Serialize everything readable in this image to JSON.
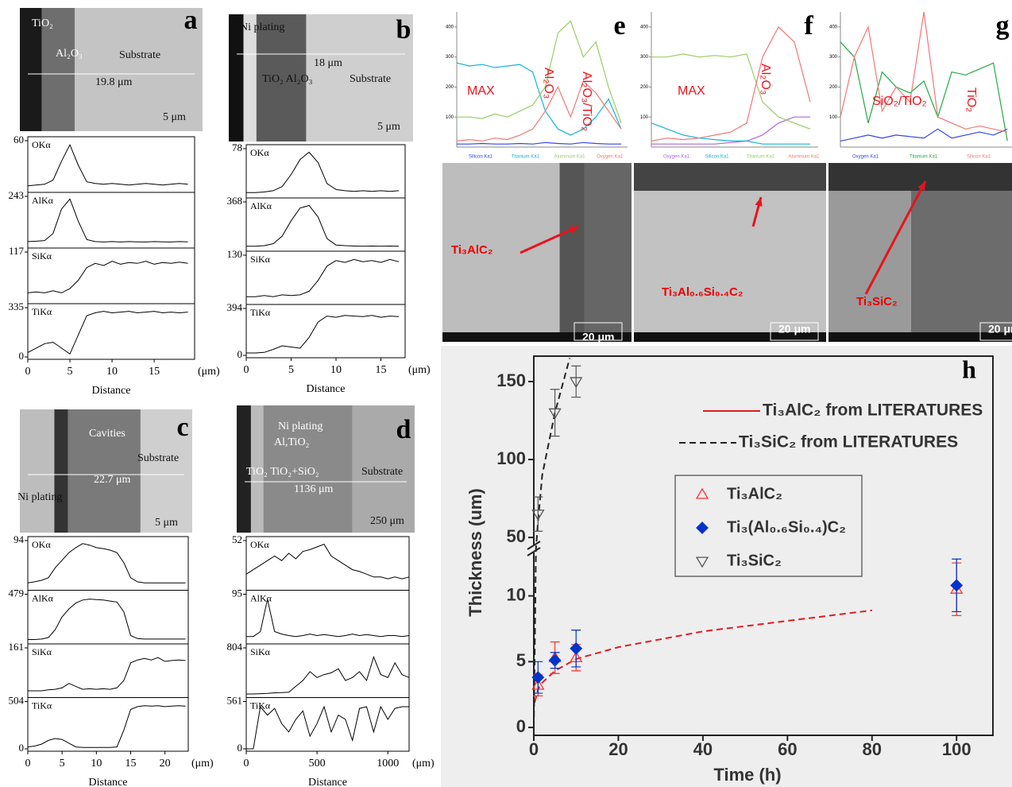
{
  "chart_data": [
    {
      "type": "profile",
      "panel": "a",
      "image_labels": [
        "TiO₂",
        "Al₂O₃",
        "Substrate",
        "19.8 μm",
        "5 μm"
      ],
      "x": [
        0,
        1,
        2,
        3,
        4,
        5,
        6,
        7,
        8,
        9,
        10,
        11,
        12,
        13,
        14,
        15,
        16,
        17,
        18,
        19
      ],
      "xlim": [
        0,
        19.8
      ],
      "xticks": [
        0,
        5,
        10,
        15
      ],
      "x_unit": "(μm)",
      "xlabel": "Distance",
      "series": [
        {
          "name": "OKα",
          "ylim": [
            0,
            60
          ],
          "yticks": [
            60
          ],
          "values": [
            5,
            6,
            7,
            12,
            35,
            55,
            30,
            10,
            8,
            7,
            8,
            7,
            6,
            7,
            8,
            7,
            6,
            7,
            8,
            7
          ]
        },
        {
          "name": "AlKα",
          "ylim": [
            0,
            243
          ],
          "yticks": [
            243
          ],
          "values": [
            20,
            22,
            25,
            60,
            180,
            230,
            120,
            30,
            20,
            18,
            20,
            18,
            20,
            19,
            18,
            20,
            19,
            18,
            20,
            19
          ]
        },
        {
          "name": "SiKα",
          "ylim": [
            0,
            117
          ],
          "yticks": [
            117
          ],
          "values": [
            20,
            22,
            20,
            25,
            20,
            30,
            50,
            80,
            90,
            85,
            95,
            88,
            92,
            90,
            95,
            88,
            92,
            90,
            93,
            90
          ]
        },
        {
          "name": "TiKα",
          "ylim": [
            0,
            335
          ],
          "yticks": [
            0,
            335
          ],
          "values": [
            30,
            60,
            90,
            100,
            60,
            20,
            150,
            280,
            300,
            310,
            300,
            305,
            310,
            300,
            305,
            310,
            300,
            305,
            300,
            305
          ]
        }
      ]
    },
    {
      "type": "profile",
      "panel": "b",
      "image_labels": [
        "Ni plating",
        "18 μm",
        "TiO₂ Al₂O₃",
        "Substrate",
        "5 μm"
      ],
      "x": [
        0,
        1,
        2,
        3,
        4,
        5,
        6,
        7,
        8,
        9,
        10,
        11,
        12,
        13,
        14,
        15,
        16,
        17
      ],
      "xlim": [
        0,
        17.7
      ],
      "xticks": [
        0,
        5,
        10,
        15
      ],
      "x_unit": "(μm)",
      "xlabel": "Distance",
      "series": [
        {
          "name": "OKα",
          "ylim": [
            0,
            78
          ],
          "yticks": [
            78
          ],
          "values": [
            5,
            5,
            6,
            8,
            15,
            35,
            60,
            72,
            55,
            20,
            10,
            8,
            7,
            8,
            7,
            8,
            7,
            8
          ]
        },
        {
          "name": "AlKα",
          "ylim": [
            0,
            368
          ],
          "yticks": [
            368
          ],
          "values": [
            20,
            20,
            25,
            40,
            100,
            220,
            320,
            340,
            250,
            80,
            30,
            25,
            22,
            20,
            22,
            20,
            22,
            20
          ]
        },
        {
          "name": "SiKα",
          "ylim": [
            0,
            130
          ],
          "yticks": [
            130
          ],
          "values": [
            15,
            15,
            18,
            15,
            20,
            18,
            20,
            30,
            60,
            100,
            115,
            110,
            118,
            112,
            115,
            110,
            118,
            112
          ]
        },
        {
          "name": "TiKα",
          "ylim": [
            0,
            394
          ],
          "yticks": [
            0,
            394
          ],
          "values": [
            20,
            20,
            25,
            50,
            80,
            70,
            60,
            150,
            280,
            330,
            320,
            335,
            330,
            325,
            335,
            320,
            330,
            325
          ]
        }
      ]
    },
    {
      "type": "profile",
      "panel": "c",
      "image_labels": [
        "Cavities",
        "Substrate",
        "22.7 μm",
        "Ni plating",
        "5 μm"
      ],
      "x": [
        0,
        1,
        2,
        3,
        4,
        5,
        6,
        7,
        8,
        9,
        10,
        11,
        12,
        13,
        14,
        15,
        16,
        17,
        18,
        19,
        20,
        21,
        22,
        23
      ],
      "xlim": [
        0,
        23.4
      ],
      "xticks": [
        0,
        5,
        10,
        15,
        20
      ],
      "x_unit": "(μm)",
      "xlabel": "Distance",
      "series": [
        {
          "name": "OKα",
          "ylim": [
            0,
            94
          ],
          "yticks": [
            94
          ],
          "values": [
            10,
            12,
            15,
            20,
            40,
            55,
            70,
            80,
            88,
            85,
            80,
            78,
            75,
            70,
            50,
            20,
            12,
            10,
            10,
            10,
            10,
            10,
            10,
            10
          ]
        },
        {
          "name": "AlKα",
          "ylim": [
            0,
            479
          ],
          "yticks": [
            479
          ],
          "values": [
            20,
            20,
            25,
            40,
            120,
            250,
            330,
            390,
            420,
            430,
            425,
            420,
            410,
            400,
            300,
            60,
            30,
            25,
            25,
            25,
            25,
            25,
            25,
            25
          ]
        },
        {
          "name": "SiKα",
          "ylim": [
            0,
            161
          ],
          "yticks": [
            161
          ],
          "values": [
            15,
            15,
            15,
            18,
            20,
            25,
            40,
            30,
            20,
            22,
            20,
            22,
            20,
            25,
            50,
            110,
            120,
            125,
            120,
            128,
            115,
            118,
            120,
            118
          ]
        },
        {
          "name": "TiKα",
          "ylim": [
            0,
            504
          ],
          "yticks": [
            0,
            504
          ],
          "values": [
            20,
            30,
            50,
            90,
            110,
            100,
            60,
            20,
            15,
            15,
            15,
            15,
            15,
            20,
            200,
            420,
            450,
            460,
            455,
            460,
            450,
            455,
            460,
            455
          ]
        }
      ]
    },
    {
      "type": "profile",
      "panel": "d",
      "image_labels": [
        "Ni plating",
        "Al,TiO₂",
        "TiO₂ TiO₂+SiO₂",
        "Substrate",
        "1136 μm",
        "250 μm"
      ],
      "x": [
        0,
        50,
        100,
        150,
        200,
        250,
        300,
        350,
        400,
        450,
        500,
        550,
        600,
        650,
        700,
        750,
        800,
        850,
        900,
        950,
        1000,
        1050,
        1100,
        1150
      ],
      "xlim": [
        0,
        1150
      ],
      "xticks": [
        0,
        500,
        1000
      ],
      "x_unit": "(μm)",
      "xlabel": "Distance",
      "series": [
        {
          "name": "OKα",
          "ylim": [
            0,
            52
          ],
          "yticks": [
            52
          ],
          "values": [
            15,
            20,
            25,
            30,
            35,
            30,
            38,
            32,
            40,
            42,
            45,
            48,
            35,
            30,
            25,
            20,
            18,
            15,
            12,
            12,
            10,
            12,
            10,
            12
          ]
        },
        {
          "name": "AlKα",
          "ylim": [
            0,
            95
          ],
          "yticks": [
            95
          ],
          "values": [
            10,
            10,
            20,
            85,
            20,
            15,
            12,
            10,
            12,
            15,
            12,
            14,
            12,
            10,
            12,
            15,
            12,
            14,
            12,
            10,
            12,
            12,
            10,
            12
          ]
        },
        {
          "name": "SiKα",
          "ylim": [
            0,
            804
          ],
          "yticks": [
            804
          ],
          "values": [
            20,
            20,
            25,
            30,
            40,
            45,
            50,
            150,
            250,
            400,
            300,
            350,
            380,
            450,
            250,
            300,
            400,
            250,
            650,
            350,
            300,
            550,
            350,
            300
          ]
        },
        {
          "name": "TiKα",
          "ylim": [
            0,
            561
          ],
          "yticks": [
            0,
            561
          ],
          "values": [
            0,
            0,
            500,
            400,
            480,
            300,
            200,
            350,
            450,
            150,
            300,
            500,
            200,
            400,
            350,
            100,
            480,
            500,
            200,
            500,
            350,
            480,
            500,
            500
          ]
        }
      ]
    },
    {
      "type": "line",
      "panel": "e",
      "annotations": [
        "MAX",
        "Al₂O₃",
        "Al₂O₃/TiO₂"
      ],
      "image_labels": [
        "Ti₃AlC₂",
        "20 μm"
      ],
      "x": [
        0,
        2,
        4,
        6,
        8,
        10,
        12,
        14,
        16,
        18,
        20,
        22,
        24,
        26
      ],
      "xlim": [
        0,
        27
      ],
      "ylim": [
        0,
        450
      ],
      "yticks": [
        100,
        200,
        300,
        400
      ],
      "series": [
        {
          "name": "Silicon Ka1",
          "color": "#3344ee",
          "values": [
            10,
            10,
            12,
            10,
            10,
            12,
            10,
            15,
            12,
            10,
            15,
            12,
            10,
            10
          ]
        },
        {
          "name": "Titanium Ka1",
          "color": "#11b5d5",
          "values": [
            280,
            270,
            275,
            265,
            270,
            275,
            250,
            120,
            60,
            40,
            60,
            100,
            160,
            60
          ]
        },
        {
          "name": "Aluminum Ka1",
          "color": "#9ccc66",
          "values": [
            100,
            100,
            95,
            110,
            100,
            120,
            140,
            200,
            380,
            420,
            300,
            350,
            200,
            80
          ]
        },
        {
          "name": "Oxygen Ka1",
          "color": "#f27777",
          "values": [
            20,
            25,
            20,
            30,
            25,
            40,
            60,
            120,
            200,
            100,
            220,
            180,
            120,
            60
          ]
        }
      ]
    },
    {
      "type": "line",
      "panel": "f",
      "annotations": [
        "MAX",
        "Al₂O₃"
      ],
      "image_labels": [
        "Ti₃Al₀.₆Si₀.₄C₂",
        "20 μm"
      ],
      "x": [
        0,
        2,
        4,
        6,
        8,
        10,
        12,
        14,
        16,
        18,
        20
      ],
      "xlim": [
        0,
        21
      ],
      "ylim": [
        0,
        450
      ],
      "yticks": [
        100,
        200,
        300,
        400
      ],
      "series": [
        {
          "name": "Oxygen Ka1",
          "color": "#aa66dd",
          "values": [
            10,
            10,
            10,
            10,
            10,
            15,
            20,
            40,
            80,
            100,
            100
          ]
        },
        {
          "name": "Silicon Ka1",
          "color": "#11b5d5",
          "values": [
            80,
            60,
            40,
            30,
            25,
            20,
            20,
            10,
            10,
            10,
            10
          ]
        },
        {
          "name": "Titanium Ka1",
          "color": "#9ccc66",
          "values": [
            300,
            300,
            310,
            300,
            305,
            300,
            310,
            150,
            100,
            80,
            60
          ]
        },
        {
          "name": "Aluminum Ka1",
          "color": "#f27777",
          "values": [
            20,
            30,
            25,
            30,
            40,
            50,
            80,
            300,
            400,
            350,
            150
          ]
        }
      ]
    },
    {
      "type": "line",
      "panel": "g",
      "annotations": [
        "SiO₂/TiO₂",
        "TiO₂"
      ],
      "image_labels": [
        "Ti₃SiC₂",
        "20 μm"
      ],
      "x": [
        0,
        15,
        30,
        45,
        60,
        75,
        90,
        105,
        120,
        135,
        150,
        165,
        180
      ],
      "xlim": [
        0,
        185
      ],
      "ylim": [
        0,
        450
      ],
      "yticks": [
        100,
        200,
        300,
        400
      ],
      "series": [
        {
          "name": "Oxygen Ka1",
          "color": "#3344ee",
          "values": [
            20,
            30,
            40,
            30,
            40,
            35,
            30,
            60,
            30,
            40,
            50,
            40,
            60
          ]
        },
        {
          "name": "Titanium Ka1",
          "color": "#22aa44",
          "values": [
            350,
            300,
            80,
            250,
            200,
            180,
            220,
            100,
            250,
            240,
            260,
            280,
            20
          ]
        },
        {
          "name": "Silicon Ka1",
          "color": "#f27777",
          "values": [
            100,
            300,
            400,
            120,
            200,
            150,
            450,
            100,
            80,
            60,
            70,
            60,
            50
          ]
        }
      ]
    },
    {
      "type": "scatter",
      "panel": "h",
      "xlabel": "Time (h)",
      "ylabel": "Thickness (um)",
      "xlim": [
        0,
        108.6
      ],
      "xticks": [
        0,
        20,
        40,
        60,
        80,
        100
      ],
      "ylim": [
        -0.6,
        166.3
      ],
      "ybreak": [
        13.6,
        42.9
      ],
      "yticks": [
        0,
        5,
        10,
        50,
        100,
        150
      ],
      "lines": [
        {
          "name": "Ti₃AlC₂ from LITERATURES",
          "color": "#e31a1c",
          "dash": true,
          "x": [
            0.2,
            1,
            2,
            5,
            10,
            20,
            40,
            60,
            80
          ],
          "values": [
            1.9,
            2.9,
            3.4,
            4.3,
            5.2,
            6.1,
            7.3,
            8.1,
            8.9
          ]
        },
        {
          "name": "Ti₃SiC₂ from LITERATURES",
          "color": "#222222",
          "dash": true,
          "x": [
            0,
            0.5,
            1,
            2,
            5,
            8.5
          ],
          "values": [
            0,
            40,
            60,
            90,
            130,
            165
          ]
        }
      ],
      "series": [
        {
          "name": "Ti₃AlC₂",
          "color": "#ff3030",
          "marker": "triangle-up",
          "x": [
            1,
            5,
            10,
            100
          ],
          "values": [
            3.2,
            5.3,
            5.3,
            10.5
          ],
          "errors": [
            0.8,
            1.2,
            1.0,
            2.0
          ]
        },
        {
          "name": "Ti₃(Al₀.₆Si₀.₄)C₂",
          "color": "#0033cc",
          "marker": "diamond",
          "x": [
            1,
            5,
            10,
            100
          ],
          "values": [
            3.8,
            5.1,
            6.0,
            10.8
          ],
          "errors": [
            1.2,
            0.6,
            1.4,
            2.0
          ]
        },
        {
          "name": "Ti₃SiC₂",
          "color": "#555555",
          "marker": "triangle-down",
          "x": [
            1,
            5,
            10
          ],
          "values": [
            65,
            130,
            150
          ],
          "errors": [
            11,
            15,
            10
          ]
        }
      ]
    }
  ]
}
